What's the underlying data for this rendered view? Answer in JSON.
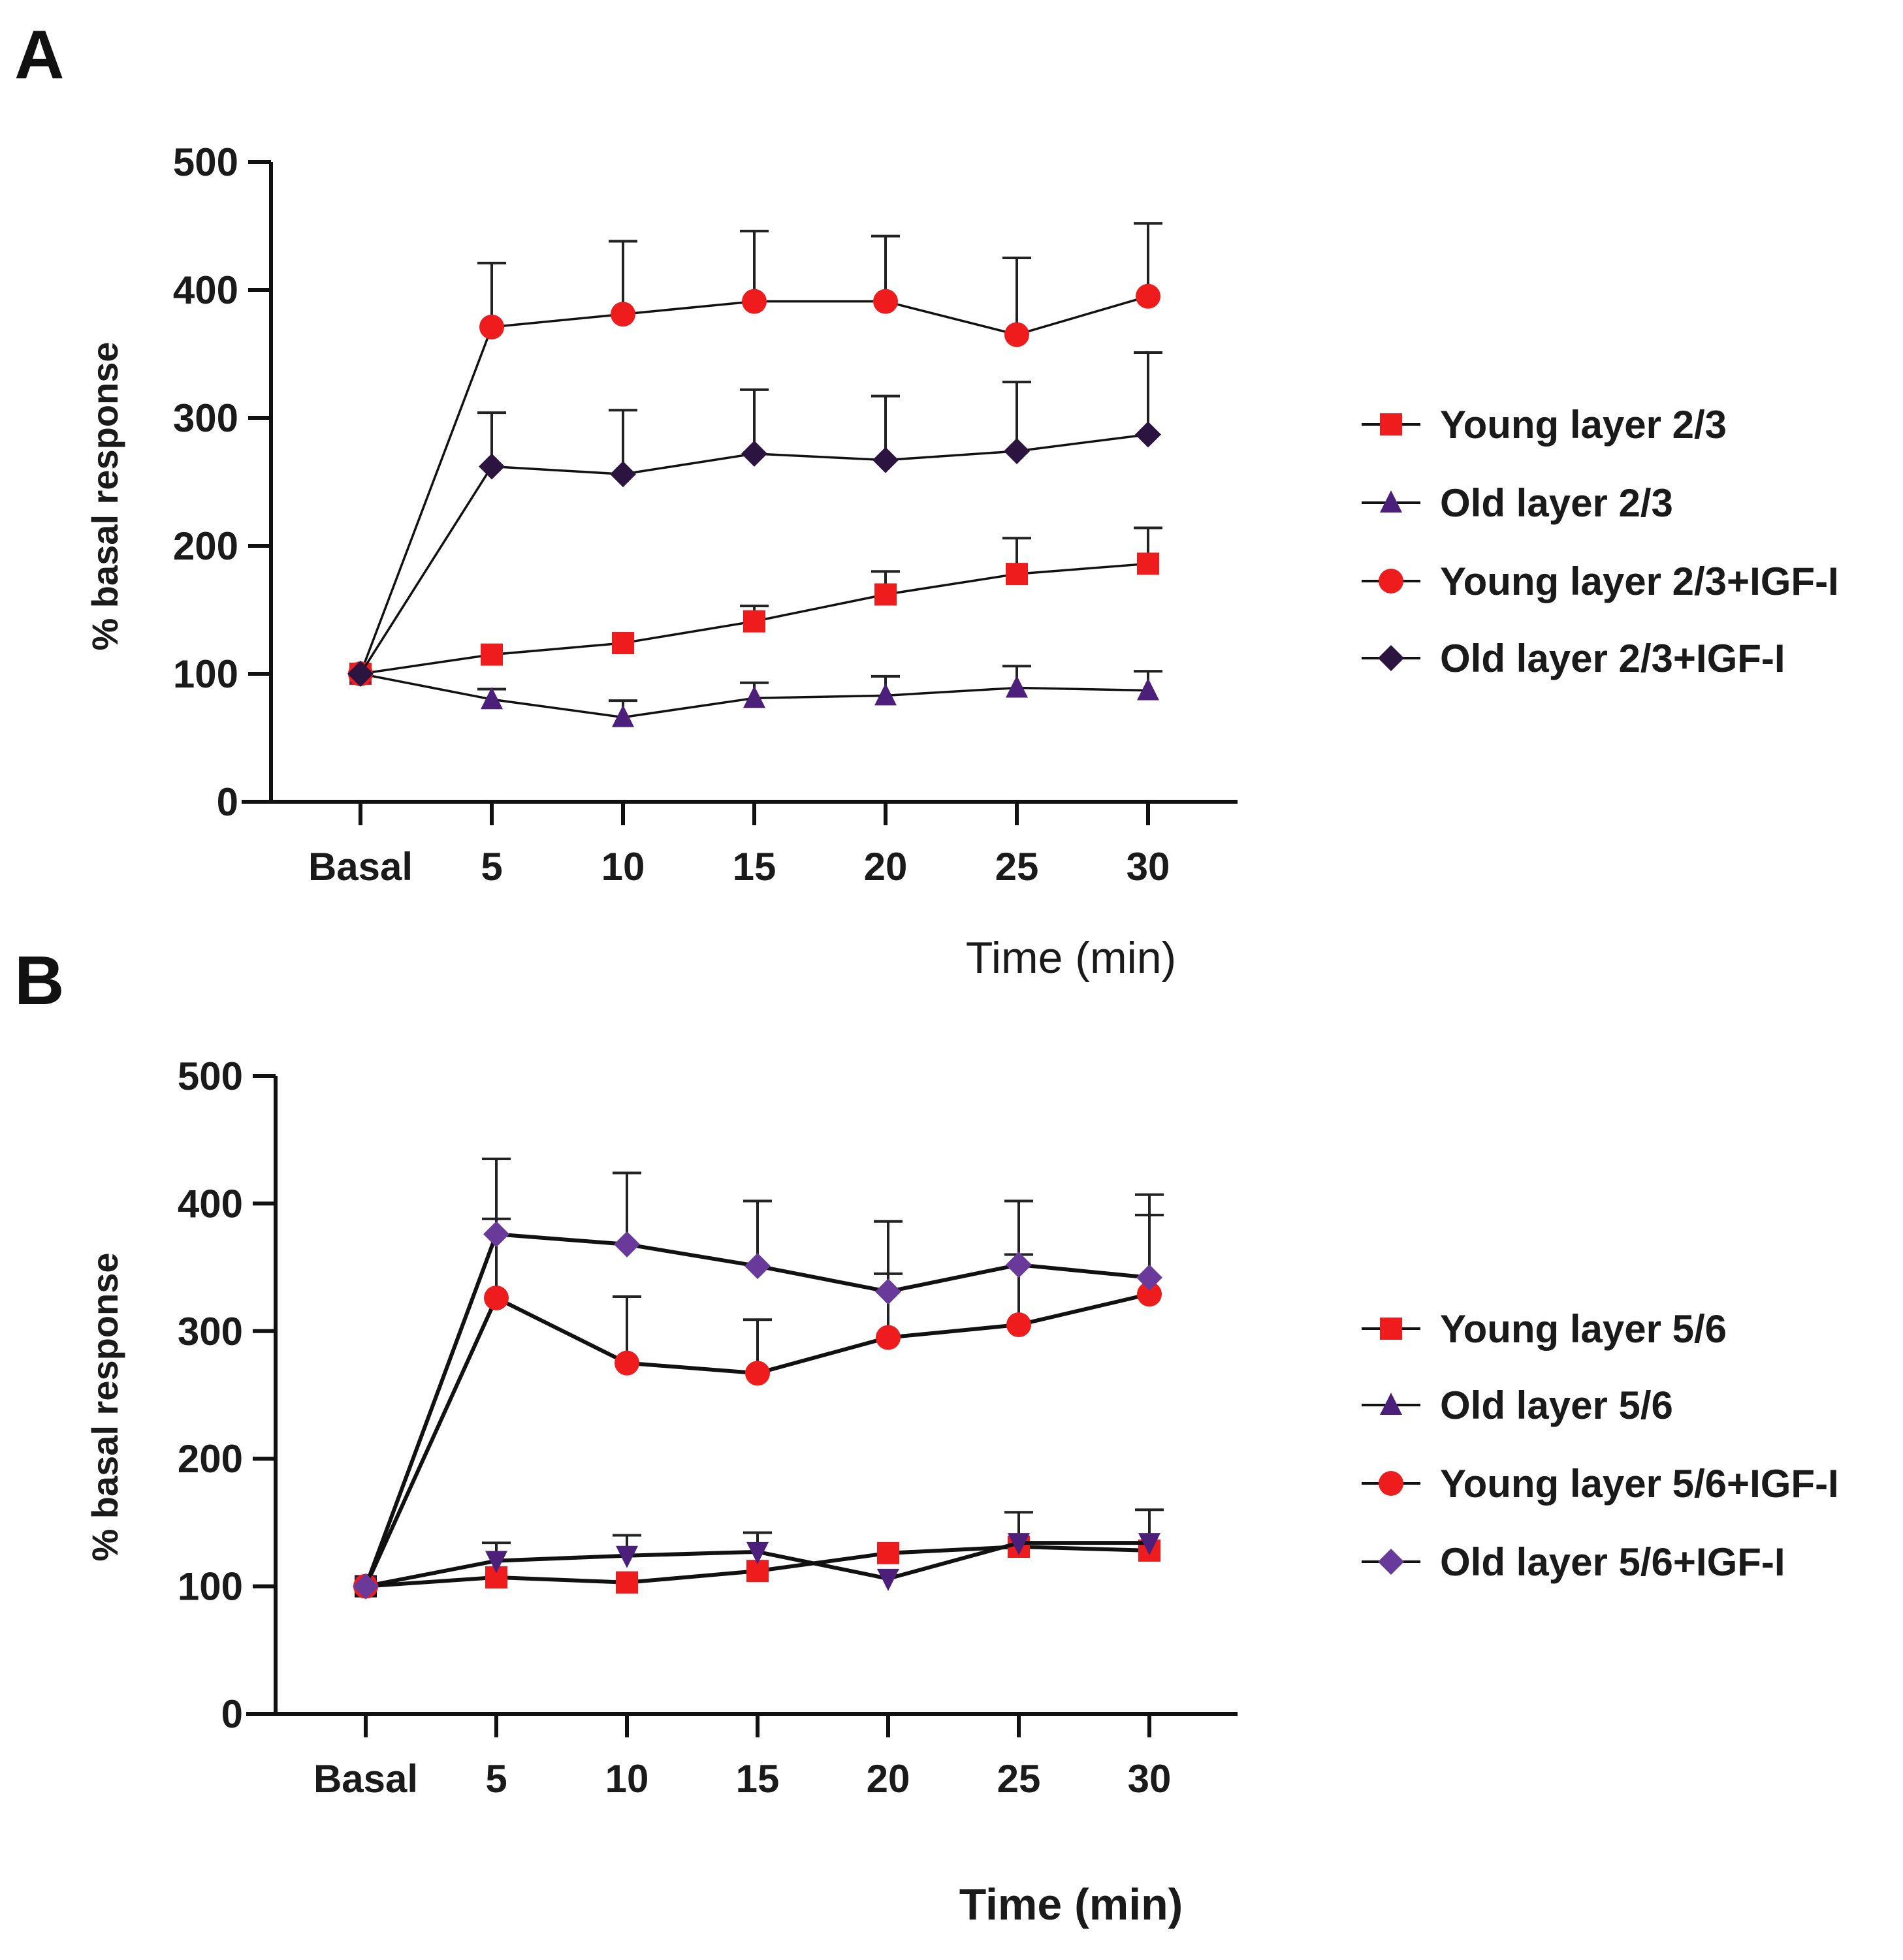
{
  "colors": {
    "red": "#ee1c1c",
    "purple": "#4b1f7a",
    "dark": "#2c1440",
    "black": "#111111"
  },
  "chart_data": [
    {
      "panel": "A",
      "type": "line",
      "categories": [
        "Basal",
        "5",
        "10",
        "15",
        "20",
        "25",
        "30"
      ],
      "xlabel": "Time (min)",
      "ylabel": "% basal response",
      "ylim": [
        0,
        500
      ],
      "yticks": [
        "0",
        "100",
        "200",
        "300",
        "400",
        "500"
      ],
      "series": [
        {
          "name": "Young layer 2/3",
          "marker": "square",
          "color": "#ee1c1c",
          "line_color": "#111111",
          "values": [
            100,
            115,
            124,
            141,
            162,
            178,
            186
          ],
          "errors": [
            0,
            0,
            0,
            12,
            18,
            28,
            28
          ],
          "error_dir": "up"
        },
        {
          "name": "Old layer 2/3",
          "marker": "triangle",
          "color": "#4b1f7a",
          "line_color": "#111111",
          "values": [
            100,
            80,
            66,
            81,
            83,
            89,
            87
          ],
          "errors": [
            0,
            8,
            13,
            12,
            15,
            17,
            15
          ],
          "error_dir": "up"
        },
        {
          "name": "Young layer 2/3+IGF-I",
          "marker": "circle",
          "color": "#ee1c1c",
          "line_color": "#111111",
          "values": [
            100,
            371,
            381,
            391,
            391,
            365,
            395
          ],
          "errors": [
            0,
            50,
            57,
            55,
            51,
            60,
            57
          ],
          "error_dir": "up"
        },
        {
          "name": "Old layer 2/3+IGF-I",
          "marker": "diamond",
          "color": "#2c1440",
          "line_color": "#111111",
          "values": [
            100,
            262,
            256,
            272,
            267,
            274,
            287
          ],
          "errors": [
            0,
            42,
            50,
            50,
            50,
            54,
            64
          ],
          "error_dir": "up"
        }
      ]
    },
    {
      "panel": "B",
      "type": "line",
      "categories": [
        "Basal",
        "5",
        "10",
        "15",
        "20",
        "25",
        "30"
      ],
      "xlabel": "Time (min)",
      "ylabel": "% basal response",
      "ylim": [
        0,
        500
      ],
      "yticks": [
        "0",
        "100",
        "200",
        "300",
        "400",
        "500"
      ],
      "series": [
        {
          "name": "Young layer 5/6",
          "marker": "square",
          "color": "#ee1c1c",
          "line_color": "#111111",
          "values": [
            100,
            107,
            103,
            112,
            126,
            131,
            128
          ],
          "errors": [
            0,
            0,
            0,
            0,
            0,
            0,
            0
          ],
          "error_dir": "up"
        },
        {
          "name": "Old layer 5/6",
          "marker": "triangle-down",
          "color": "#4b1f7a",
          "line_color": "#111111",
          "values": [
            100,
            120,
            124,
            127,
            106,
            134,
            134
          ],
          "errors": [
            0,
            14,
            16,
            15,
            0,
            24,
            26
          ],
          "error_dir": "up"
        },
        {
          "name": "Young layer 5/6+IGF-I",
          "marker": "circle",
          "color": "#ee1c1c",
          "line_color": "#111111",
          "values": [
            100,
            326,
            275,
            267,
            295,
            305,
            329
          ],
          "errors": [
            0,
            62,
            52,
            42,
            50,
            55,
            62
          ],
          "error_dir": "up"
        },
        {
          "name": "Old layer 5/6+IGF-I",
          "marker": "diamond",
          "color": "#6a3a9a",
          "line_color": "#111111",
          "values": [
            100,
            376,
            368,
            351,
            331,
            352,
            342
          ],
          "errors": [
            0,
            59,
            56,
            51,
            55,
            50,
            65
          ],
          "error_dir": "up"
        }
      ],
      "legend_names": [
        "Young layer 5/6",
        "Old layer 5/6",
        "Young layer 5/6+IGF-I",
        "Old layer 5/6+IGF-I"
      ]
    }
  ]
}
